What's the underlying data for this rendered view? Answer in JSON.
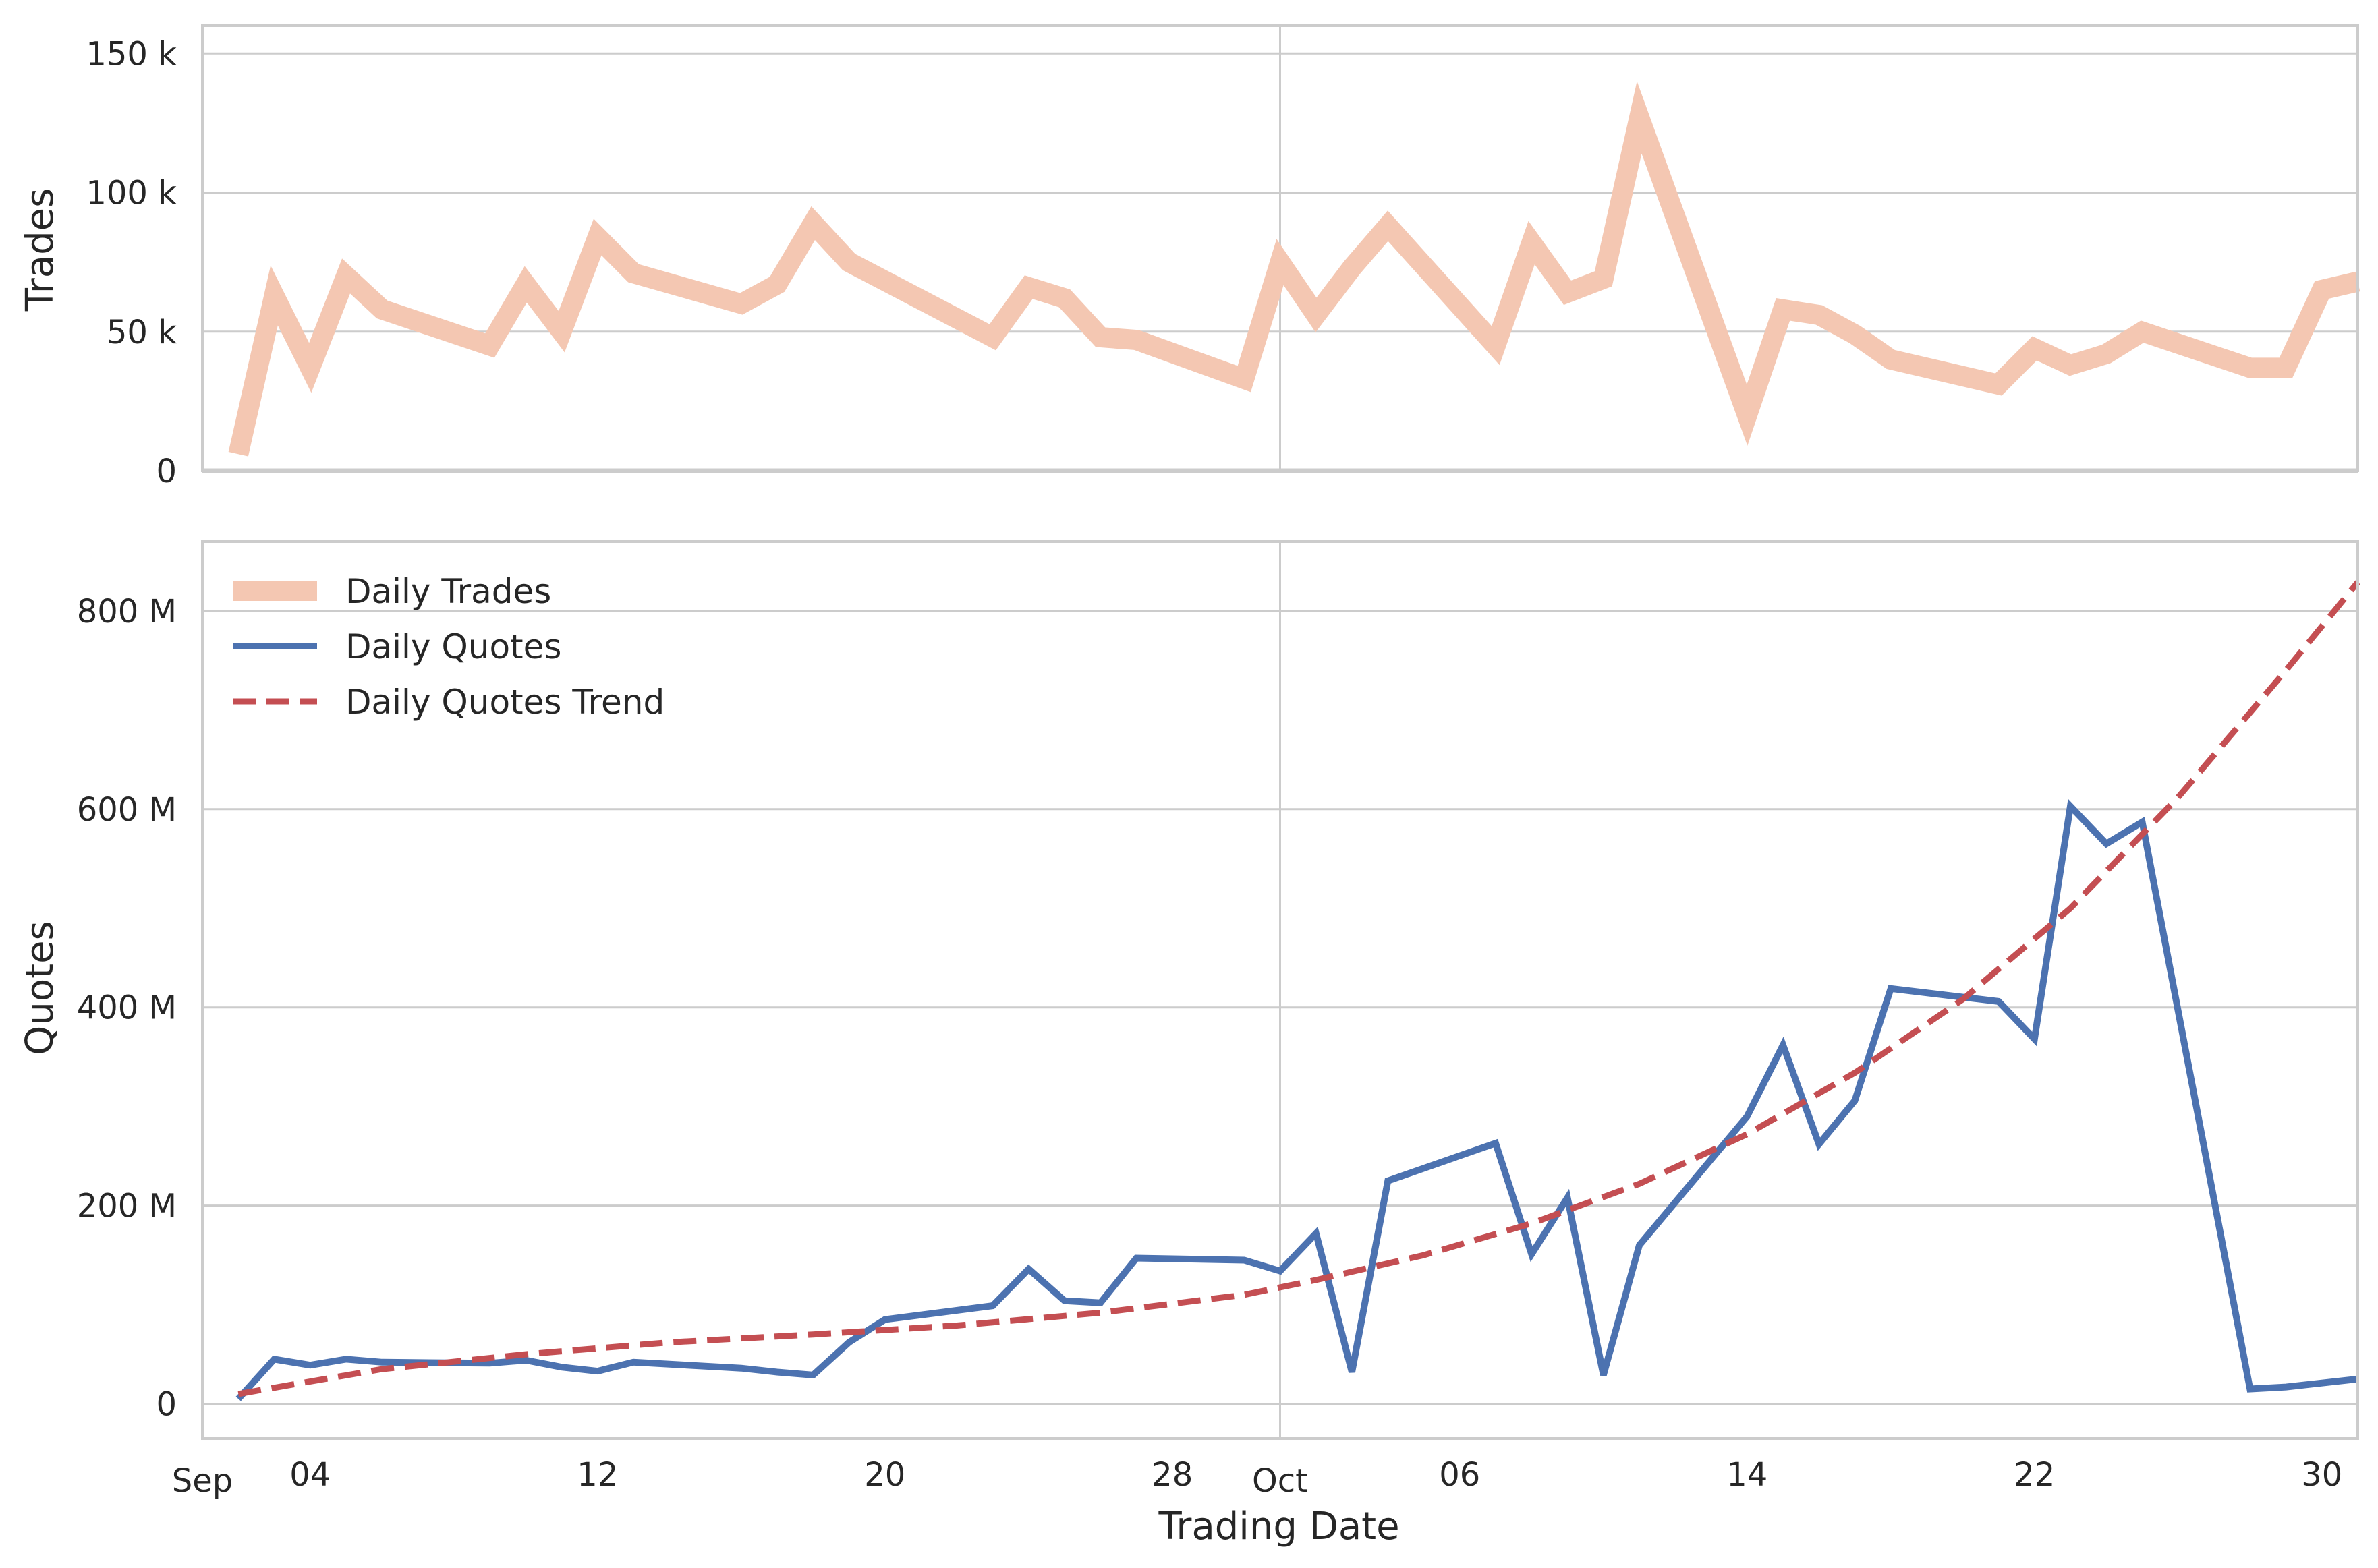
{
  "chart_data": [
    {
      "type": "line",
      "ylabel": "Trades",
      "ylim": [
        0,
        160000
      ],
      "yticks": [
        {
          "value": 0,
          "label": "0"
        },
        {
          "value": 50000,
          "label": "50 k"
        },
        {
          "value": 100000,
          "label": "100 k"
        },
        {
          "value": 150000,
          "label": "150 k"
        }
      ],
      "grid": true,
      "series": [
        {
          "name": "Daily Trades",
          "color": "#f4c7b2",
          "points": [
            [
              "2017-09-02",
              6000
            ],
            [
              "2017-09-03",
              63000
            ],
            [
              "2017-09-04",
              37000
            ],
            [
              "2017-09-05",
              70000
            ],
            [
              "2017-09-06",
              58000
            ],
            [
              "2017-09-09",
              45000
            ],
            [
              "2017-09-10",
              67000
            ],
            [
              "2017-09-11",
              50000
            ],
            [
              "2017-09-12",
              84000
            ],
            [
              "2017-09-13",
              71000
            ],
            [
              "2017-09-16",
              60000
            ],
            [
              "2017-09-17",
              67000
            ],
            [
              "2017-09-18",
              89000
            ],
            [
              "2017-09-19",
              75000
            ],
            [
              "2017-09-23",
              48000
            ],
            [
              "2017-09-24",
              66000
            ],
            [
              "2017-09-25",
              62000
            ],
            [
              "2017-09-26",
              48000
            ],
            [
              "2017-09-27",
              47000
            ],
            [
              "2017-09-30",
              33000
            ],
            [
              "2017-10-01",
              75000
            ],
            [
              "2017-10-02",
              56000
            ],
            [
              "2017-10-03",
              73000
            ],
            [
              "2017-10-04",
              88000
            ],
            [
              "2017-10-07",
              45000
            ],
            [
              "2017-10-08",
              82000
            ],
            [
              "2017-10-09",
              64000
            ],
            [
              "2017-10-10",
              69000
            ],
            [
              "2017-10-11",
              127000
            ],
            [
              "2017-10-14",
              20000
            ],
            [
              "2017-10-15",
              58000
            ],
            [
              "2017-10-16",
              56000
            ],
            [
              "2017-10-17",
              49000
            ],
            [
              "2017-10-18",
              40000
            ],
            [
              "2017-10-21",
              31000
            ],
            [
              "2017-10-22",
              44000
            ],
            [
              "2017-10-23",
              38000
            ],
            [
              "2017-10-24",
              42000
            ],
            [
              "2017-10-25",
              50000
            ],
            [
              "2017-10-28",
              37000
            ],
            [
              "2017-10-29",
              37000
            ],
            [
              "2017-10-30",
              65000
            ],
            [
              "2017-10-31",
              68000
            ]
          ]
        }
      ]
    },
    {
      "type": "line",
      "xlabel": "Trading Date",
      "ylabel": "Quotes",
      "ylim": [
        -35000000,
        870000000
      ],
      "yticks": [
        {
          "value": 0,
          "label": "0"
        },
        {
          "value": 200000000,
          "label": "200 M"
        },
        {
          "value": 400000000,
          "label": "400 M"
        },
        {
          "value": 600000000,
          "label": "600 M"
        },
        {
          "value": 800000000,
          "label": "800 M"
        }
      ],
      "xlim": [
        "2017-09-01",
        "2017-10-31"
      ],
      "xticks": [
        {
          "date": "2017-09-01",
          "label": "Sep"
        },
        {
          "date": "2017-09-04",
          "label": "04"
        },
        {
          "date": "2017-09-12",
          "label": "12"
        },
        {
          "date": "2017-09-20",
          "label": "20"
        },
        {
          "date": "2017-09-28",
          "label": "28"
        },
        {
          "date": "2017-10-01",
          "label": "Oct"
        },
        {
          "date": "2017-10-06",
          "label": "06"
        },
        {
          "date": "2017-10-14",
          "label": "14"
        },
        {
          "date": "2017-10-22",
          "label": "22"
        },
        {
          "date": "2017-10-30",
          "label": "30"
        }
      ],
      "grid": true,
      "legend_position": "top-left",
      "series": [
        {
          "name": "Daily Quotes",
          "color": "#4c72b0",
          "points": [
            [
              "2017-09-02",
              5000000
            ],
            [
              "2017-09-03",
              45000000
            ],
            [
              "2017-09-04",
              39000000
            ],
            [
              "2017-09-05",
              45000000
            ],
            [
              "2017-09-06",
              42000000
            ],
            [
              "2017-09-09",
              41000000
            ],
            [
              "2017-09-10",
              44000000
            ],
            [
              "2017-09-11",
              37000000
            ],
            [
              "2017-09-12",
              33000000
            ],
            [
              "2017-09-13",
              42000000
            ],
            [
              "2017-09-16",
              36000000
            ],
            [
              "2017-09-17",
              32000000
            ],
            [
              "2017-09-18",
              29000000
            ],
            [
              "2017-09-19",
              62000000
            ],
            [
              "2017-09-20",
              85000000
            ],
            [
              "2017-09-23",
              99000000
            ],
            [
              "2017-09-24",
              136000000
            ],
            [
              "2017-09-25",
              104000000
            ],
            [
              "2017-09-26",
              102000000
            ],
            [
              "2017-09-27",
              147000000
            ],
            [
              "2017-09-30",
              145000000
            ],
            [
              "2017-10-01",
              134000000
            ],
            [
              "2017-10-02",
              172000000
            ],
            [
              "2017-10-03",
              32000000
            ],
            [
              "2017-10-04",
              225000000
            ],
            [
              "2017-10-07",
              263000000
            ],
            [
              "2017-10-08",
              151000000
            ],
            [
              "2017-10-09",
              208000000
            ],
            [
              "2017-10-10",
              29000000
            ],
            [
              "2017-10-11",
              160000000
            ],
            [
              "2017-10-14",
              290000000
            ],
            [
              "2017-10-15",
              362000000
            ],
            [
              "2017-10-16",
              262000000
            ],
            [
              "2017-10-17",
              306000000
            ],
            [
              "2017-10-18",
              419000000
            ],
            [
              "2017-10-21",
              406000000
            ],
            [
              "2017-10-22",
              368000000
            ],
            [
              "2017-10-23",
              603000000
            ],
            [
              "2017-10-24",
              565000000
            ],
            [
              "2017-10-25",
              587000000
            ],
            [
              "2017-10-28",
              15000000
            ],
            [
              "2017-10-29",
              17000000
            ],
            [
              "2017-10-31",
              25000000
            ]
          ]
        },
        {
          "name": "Daily Quotes Trend",
          "color": "#c44e52",
          "dashed": true,
          "points": [
            [
              "2017-09-02",
              10000000
            ],
            [
              "2017-09-06",
              35000000
            ],
            [
              "2017-09-10",
              50000000
            ],
            [
              "2017-09-14",
              62000000
            ],
            [
              "2017-09-18",
              70000000
            ],
            [
              "2017-09-22",
              79000000
            ],
            [
              "2017-09-26",
              92000000
            ],
            [
              "2017-09-30",
              110000000
            ],
            [
              "2017-10-02",
              125000000
            ],
            [
              "2017-10-05",
              150000000
            ],
            [
              "2017-10-08",
              182000000
            ],
            [
              "2017-10-11",
              222000000
            ],
            [
              "2017-10-14",
              272000000
            ],
            [
              "2017-10-17",
              334000000
            ],
            [
              "2017-10-20",
              408000000
            ],
            [
              "2017-10-23",
              500000000
            ],
            [
              "2017-10-26",
              612000000
            ],
            [
              "2017-10-29",
              740000000
            ],
            [
              "2017-10-31",
              829000000
            ]
          ]
        }
      ],
      "legend": [
        {
          "label": "Daily Trades",
          "color": "#f4c7b2"
        },
        {
          "label": "Daily Quotes",
          "color": "#4c72b0"
        },
        {
          "label": "Daily Quotes Trend",
          "color": "#c44e52",
          "dashed": true
        }
      ]
    }
  ]
}
